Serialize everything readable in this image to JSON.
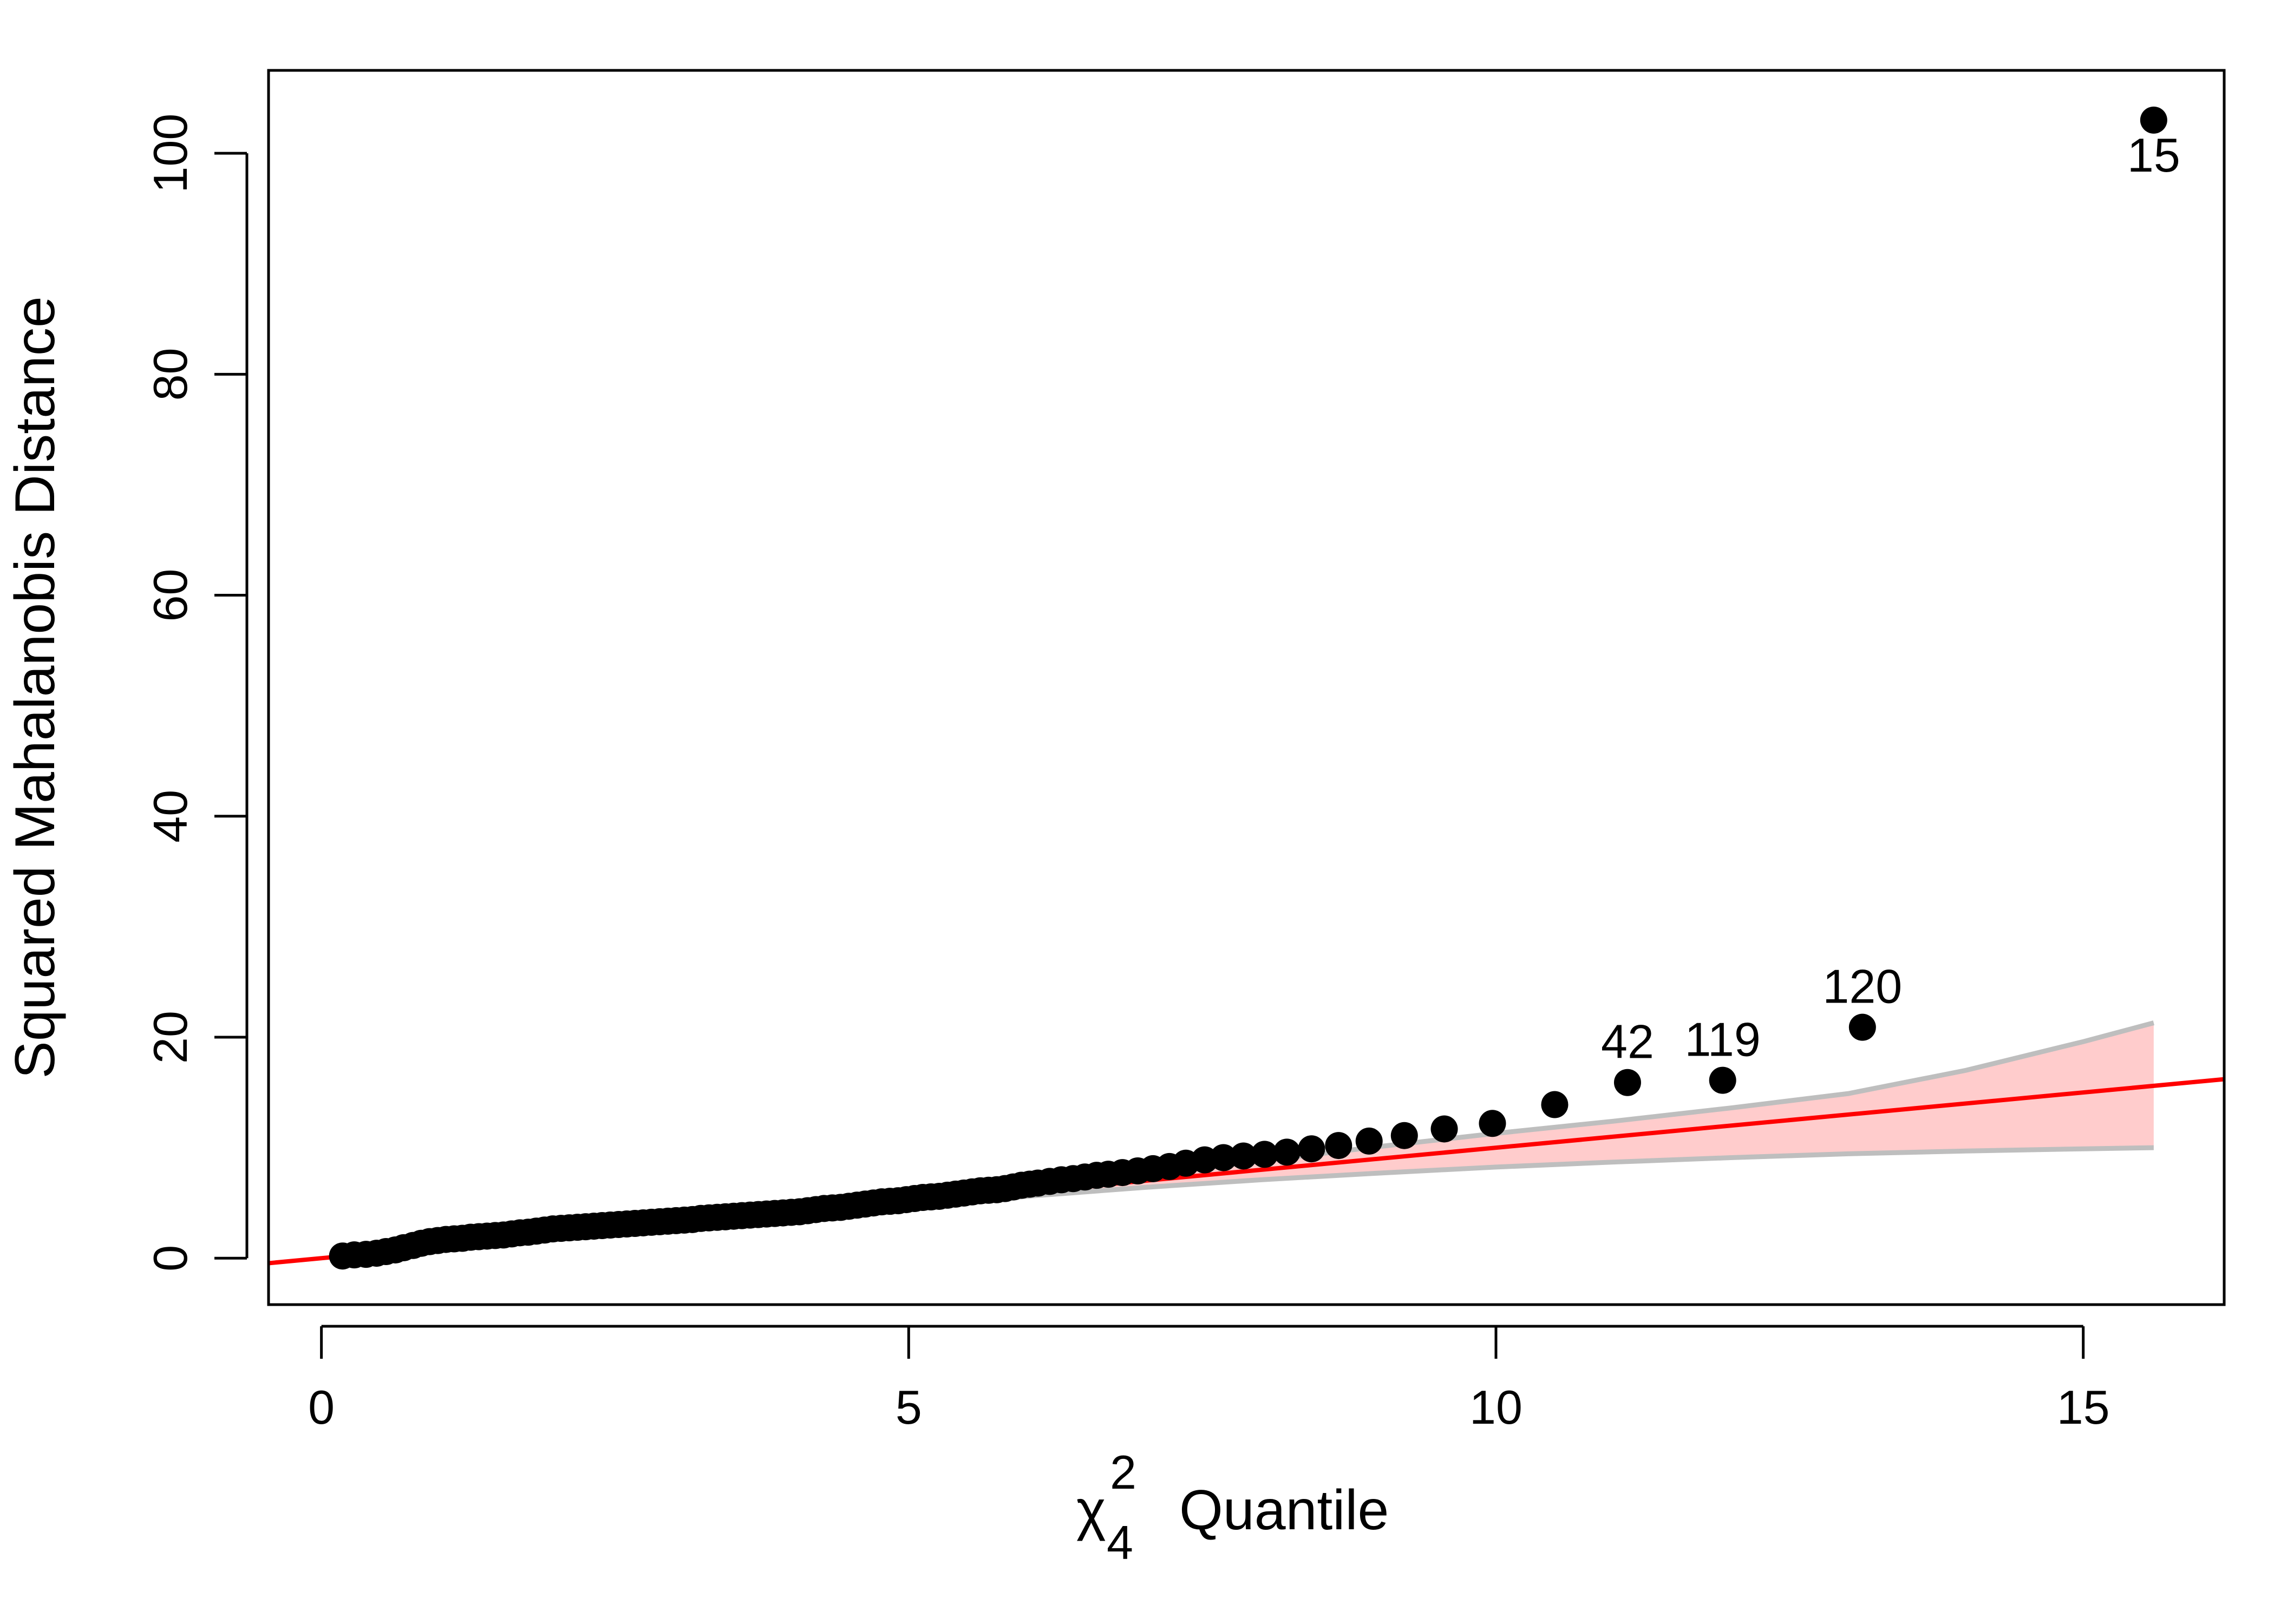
{
  "chart_data": {
    "type": "scatter",
    "title": "",
    "xlabel": {
      "symbol": "χ",
      "superscript": "2",
      "subscript": "4",
      "text": "Quantile"
    },
    "ylabel": "Squared Mahalanobis Distance",
    "xlim": [
      -0.45,
      16.2
    ],
    "ylim": [
      -4.2,
      107.5
    ],
    "xticks": [
      0,
      5,
      10,
      15
    ],
    "yticks": [
      0,
      20,
      40,
      60,
      80,
      100
    ],
    "x_tick_labels": [
      "0",
      "5",
      "10",
      "15"
    ],
    "y_tick_labels": [
      "0",
      "20",
      "40",
      "60",
      "80",
      "100"
    ],
    "grid": false,
    "colors": {
      "points": "#000000",
      "reference_line": "#ff0000",
      "band_fill": "#ffcccc",
      "band_edge": "#bebebe"
    },
    "reference_line": {
      "intercept": 0,
      "slope": 1
    },
    "confidence_band": {
      "x": [
        0.2,
        1,
        2,
        3,
        4,
        5,
        6,
        7,
        8,
        9,
        10,
        11,
        12,
        13,
        14,
        15,
        15.6
      ],
      "lower": [
        0.1,
        0.9,
        1.9,
        2.85,
        3.8,
        4.7,
        5.6,
        6.4,
        7.1,
        7.7,
        8.25,
        8.7,
        9.1,
        9.45,
        9.7,
        9.9,
        10.0
      ],
      "upper": [
        0.35,
        1.15,
        2.15,
        3.15,
        4.15,
        5.2,
        6.3,
        7.5,
        8.8,
        10.1,
        11.3,
        12.4,
        13.6,
        14.9,
        17.0,
        19.6,
        21.3
      ]
    },
    "points": {
      "x": [
        0.18,
        0.28,
        0.38,
        0.47,
        0.55,
        0.63,
        0.7,
        0.78,
        0.85,
        0.92,
        0.99,
        1.06,
        1.13,
        1.2,
        1.27,
        1.34,
        1.41,
        1.48,
        1.55,
        1.62,
        1.69,
        1.76,
        1.83,
        1.9,
        1.97,
        2.04,
        2.11,
        2.18,
        2.25,
        2.32,
        2.39,
        2.46,
        2.53,
        2.6,
        2.67,
        2.74,
        2.81,
        2.88,
        2.95,
        3.02,
        3.09,
        3.16,
        3.23,
        3.3,
        3.37,
        3.44,
        3.51,
        3.58,
        3.65,
        3.72,
        3.79,
        3.86,
        3.93,
        4.0,
        4.07,
        4.14,
        4.21,
        4.28,
        4.35,
        4.42,
        4.49,
        4.56,
        4.63,
        4.7,
        4.77,
        4.84,
        4.91,
        4.98,
        5.05,
        5.12,
        5.19,
        5.26,
        5.33,
        5.4,
        5.47,
        5.54,
        5.61,
        5.68,
        5.75,
        5.82,
        5.89,
        5.96,
        6.03,
        6.1,
        6.2,
        6.3,
        6.4,
        6.5,
        6.6,
        6.7,
        6.82,
        6.95,
        7.08,
        7.22,
        7.36,
        7.52,
        7.68,
        7.85,
        8.03,
        8.22,
        8.43,
        8.66,
        8.92,
        9.22,
        9.56,
        9.97,
        10.5,
        11.12,
        11.93,
        13.12,
        15.6
      ],
      "y": [
        0.2,
        0.3,
        0.35,
        0.45,
        0.6,
        0.75,
        0.95,
        1.15,
        1.35,
        1.5,
        1.6,
        1.7,
        1.75,
        1.8,
        1.9,
        1.95,
        2.0,
        2.05,
        2.1,
        2.2,
        2.3,
        2.35,
        2.45,
        2.55,
        2.65,
        2.7,
        2.75,
        2.8,
        2.85,
        2.9,
        2.95,
        3.0,
        3.05,
        3.1,
        3.15,
        3.2,
        3.25,
        3.3,
        3.35,
        3.4,
        3.45,
        3.5,
        3.6,
        3.65,
        3.7,
        3.75,
        3.8,
        3.85,
        3.9,
        3.95,
        4.0,
        4.05,
        4.1,
        4.15,
        4.2,
        4.3,
        4.4,
        4.5,
        4.55,
        4.6,
        4.7,
        4.8,
        4.9,
        5.0,
        5.1,
        5.15,
        5.2,
        5.3,
        5.4,
        5.5,
        5.55,
        5.6,
        5.7,
        5.8,
        5.9,
        6.0,
        6.1,
        6.15,
        6.2,
        6.3,
        6.45,
        6.6,
        6.7,
        6.8,
        6.95,
        7.1,
        7.2,
        7.35,
        7.5,
        7.6,
        7.75,
        7.9,
        8.1,
        8.3,
        8.6,
        8.9,
        9.1,
        9.25,
        9.4,
        9.6,
        9.9,
        10.2,
        10.6,
        11.1,
        11.7,
        12.2,
        13.9,
        15.9,
        16.1,
        20.9,
        103.0
      ]
    },
    "labeled_points": [
      {
        "label": "15",
        "x": 15.6,
        "y": 103.0,
        "position": "below"
      },
      {
        "label": "120",
        "x": 13.12,
        "y": 20.9,
        "position": "above"
      },
      {
        "label": "119",
        "x": 11.93,
        "y": 16.1,
        "position": "above"
      },
      {
        "label": "42",
        "x": 11.12,
        "y": 15.9,
        "position": "above"
      }
    ]
  }
}
